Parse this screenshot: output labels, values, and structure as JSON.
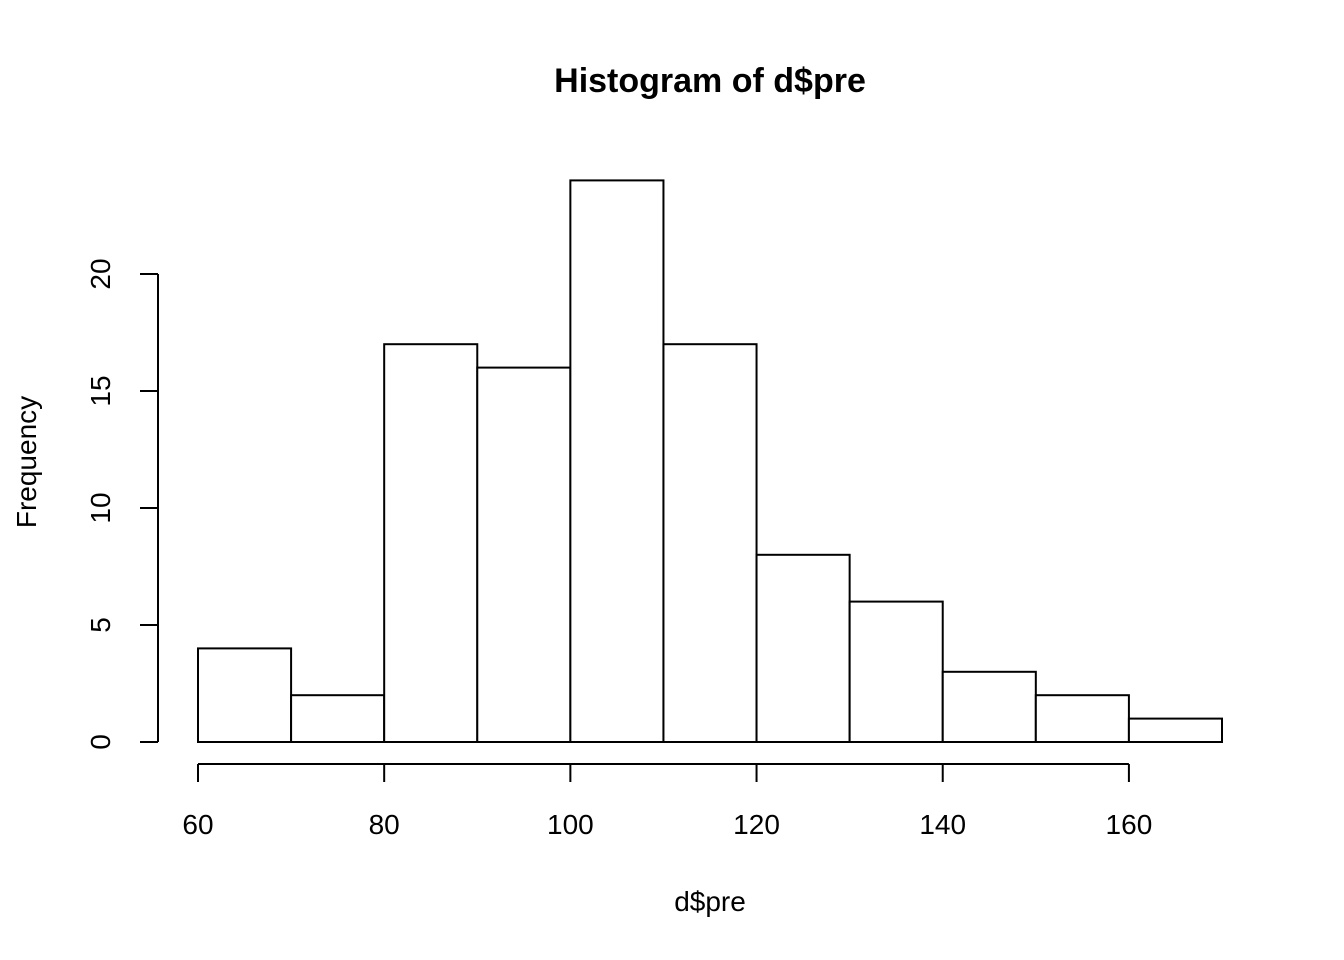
{
  "chart_data": {
    "type": "bar",
    "title": "Histogram of d$pre",
    "xlabel": "d$pre",
    "ylabel": "Frequency",
    "bins": [
      {
        "start": 60,
        "end": 70,
        "count": 4
      },
      {
        "start": 70,
        "end": 80,
        "count": 2
      },
      {
        "start": 80,
        "end": 90,
        "count": 17
      },
      {
        "start": 90,
        "end": 100,
        "count": 16
      },
      {
        "start": 100,
        "end": 110,
        "count": 24
      },
      {
        "start": 110,
        "end": 120,
        "count": 17
      },
      {
        "start": 120,
        "end": 130,
        "count": 8
      },
      {
        "start": 130,
        "end": 140,
        "count": 6
      },
      {
        "start": 140,
        "end": 150,
        "count": 3
      },
      {
        "start": 150,
        "end": 160,
        "count": 2
      },
      {
        "start": 160,
        "end": 170,
        "count": 1
      }
    ],
    "xlim": [
      60,
      170
    ],
    "ylim": [
      0,
      24
    ],
    "x_ticks": [
      60,
      80,
      100,
      120,
      140,
      160
    ],
    "y_ticks": [
      0,
      5,
      10,
      15,
      20
    ],
    "grid": false,
    "bar_fill": "#ffffff",
    "bar_stroke": "#000000"
  }
}
